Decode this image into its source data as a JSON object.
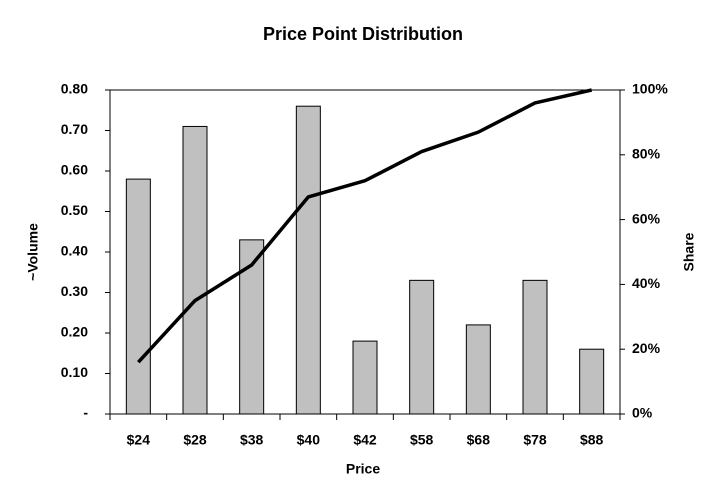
{
  "chart_data": {
    "type": "bar",
    "title": "Price Point Distribution",
    "x_label": "Price",
    "y_label": "~Volume",
    "y2_label": "Share",
    "categories": [
      "$24",
      "$28",
      "$38",
      "$40",
      "$42",
      "$58",
      "$68",
      "$78",
      "$88"
    ],
    "series": [
      {
        "color": "#c0c0c0",
        "values": [
          0.58,
          0.71,
          0.43,
          0.76,
          0.18,
          0.33,
          0.22,
          0.33,
          0.16
        ]
      },
      {
        "color": "#000000",
        "axis": "y2",
        "values": [
          16,
          35,
          46,
          67,
          72,
          81,
          87,
          96,
          100
        ]
      }
    ],
    "ylim": [
      0,
      0.8
    ],
    "yticks": [
      {
        "value": 0,
        "label": "-"
      },
      {
        "value": 0.1,
        "label": "0.10"
      },
      {
        "value": 0.2,
        "label": "0.20"
      },
      {
        "value": 0.3,
        "label": "0.30"
      },
      {
        "value": 0.4,
        "label": "0.40"
      },
      {
        "value": 0.5,
        "label": "0.50"
      },
      {
        "value": 0.6,
        "label": "0.60"
      },
      {
        "value": 0.7,
        "label": "0.70"
      },
      {
        "value": 0.8,
        "label": "0.80"
      }
    ],
    "y2lim": [
      0,
      100
    ],
    "y2ticks": [
      {
        "value": 0,
        "label": "0%"
      },
      {
        "value": 20,
        "label": "20%"
      },
      {
        "value": 40,
        "label": "40%"
      },
      {
        "value": 60,
        "label": "60%"
      },
      {
        "value": 80,
        "label": "80%"
      },
      {
        "value": 100,
        "label": "100%"
      }
    ]
  }
}
